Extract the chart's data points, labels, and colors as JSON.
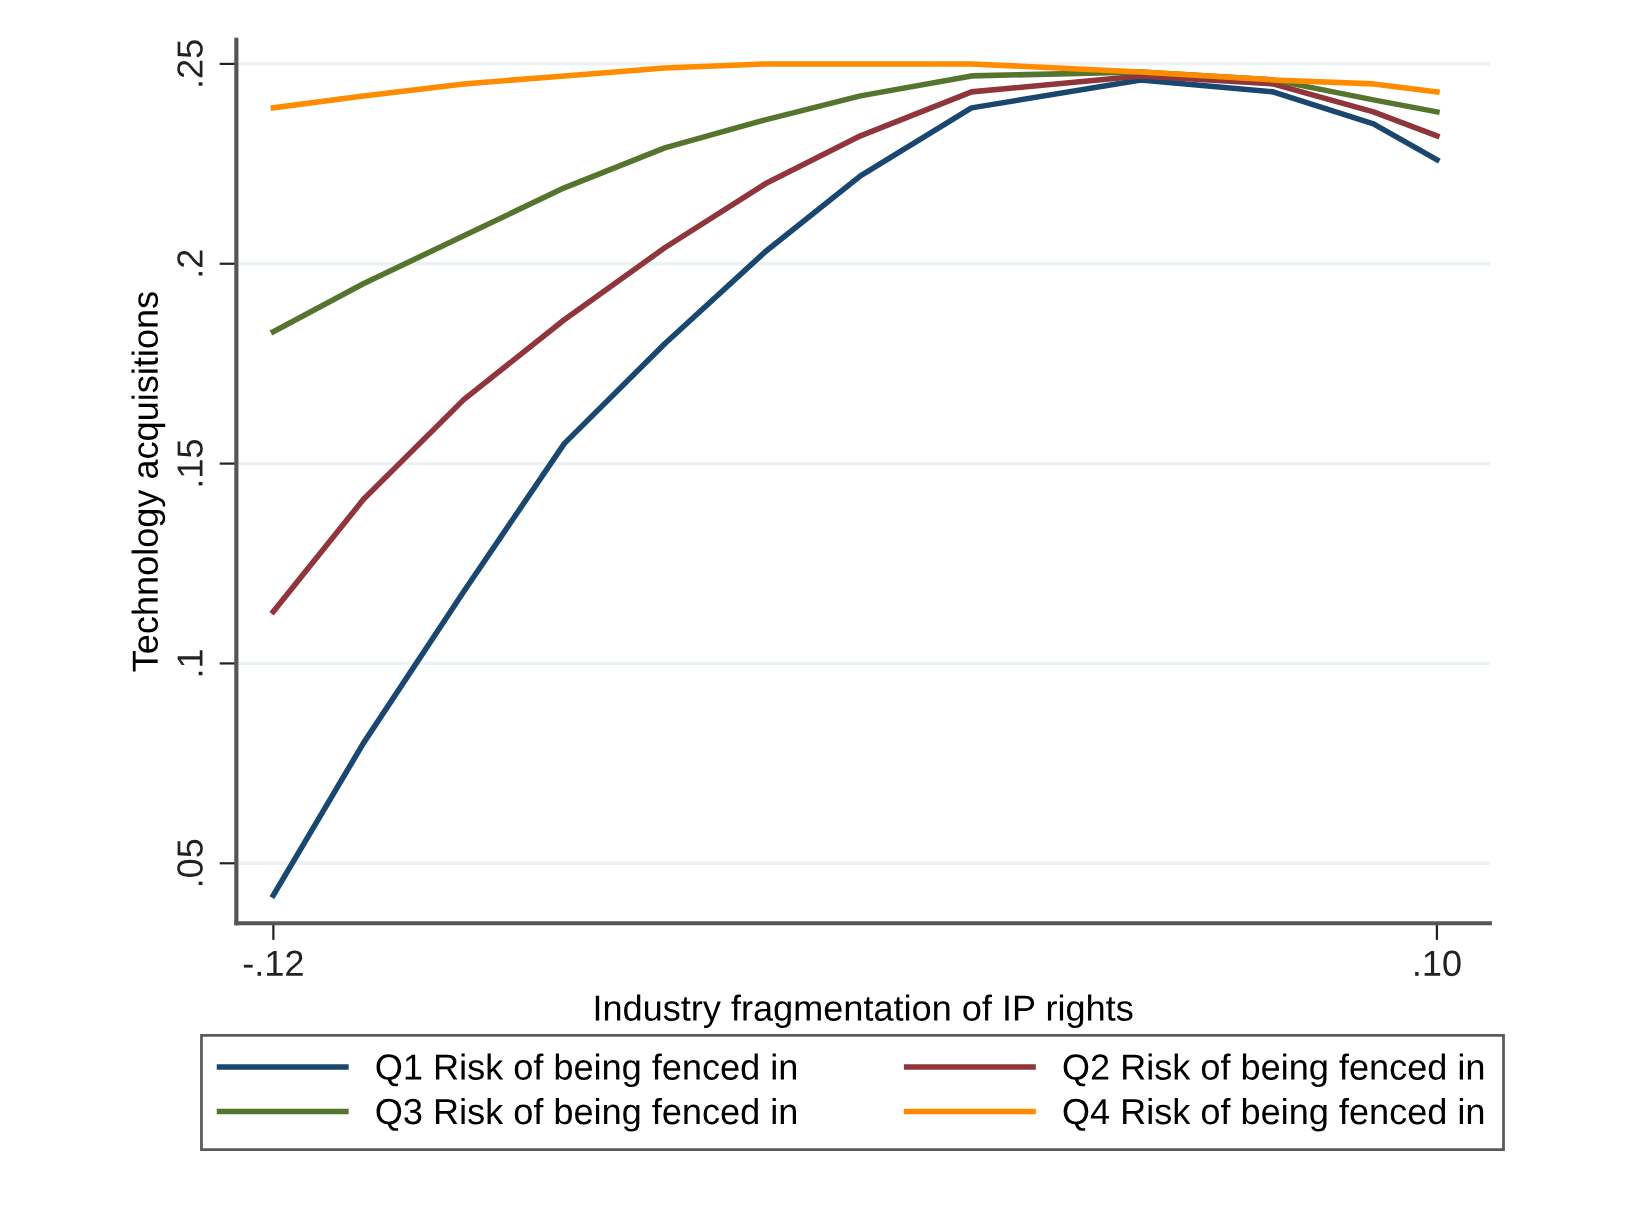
{
  "chart_data": {
    "type": "line",
    "xlabel": "Industry fragmentation of IP rights",
    "ylabel": "Technology acquisitions",
    "x": [
      -0.12,
      -0.103,
      -0.084,
      -0.065,
      -0.046,
      -0.027,
      -0.009,
      0.012,
      0.044,
      0.069,
      0.088,
      0.1
    ],
    "series": [
      {
        "name": "Q1 Risk of being fenced in",
        "color": "#1a476f",
        "values": [
          0.042,
          0.08,
          0.118,
          0.155,
          0.18,
          0.203,
          0.222,
          0.239,
          0.246,
          0.243,
          0.235,
          0.226
        ]
      },
      {
        "name": "Q2 Risk of being fenced in",
        "color": "#90353b",
        "values": [
          0.113,
          0.141,
          0.166,
          0.186,
          0.204,
          0.22,
          0.232,
          0.243,
          0.247,
          0.245,
          0.238,
          0.232
        ]
      },
      {
        "name": "Q3 Risk of being fenced in",
        "color": "#55752f",
        "values": [
          0.183,
          0.195,
          0.207,
          0.219,
          0.229,
          0.236,
          0.242,
          0.247,
          0.248,
          0.246,
          0.241,
          0.238
        ]
      },
      {
        "name": "Q4 Risk of being fenced in",
        "color": "#ff8c00",
        "values": [
          0.239,
          0.242,
          0.245,
          0.247,
          0.249,
          0.25,
          0.25,
          0.25,
          0.248,
          0.246,
          0.245,
          0.243
        ]
      }
    ],
    "xlim": [
      -0.127,
      0.11
    ],
    "xticks": [
      {
        "value": -0.12,
        "label": "-.12"
      },
      {
        "value": 0.1,
        "label": ".10"
      }
    ],
    "ylim": [
      0.035,
      0.256
    ],
    "yticks": [
      {
        "value": 0.05,
        "label": ".05"
      },
      {
        "value": 0.1,
        "label": ".1"
      },
      {
        "value": 0.15,
        "label": ".15"
      },
      {
        "value": 0.2,
        "label": ".2"
      },
      {
        "value": 0.25,
        "label": ".25"
      }
    ],
    "grid": "y",
    "legend": "bottom",
    "marker": "none",
    "line_style": "solid"
  }
}
